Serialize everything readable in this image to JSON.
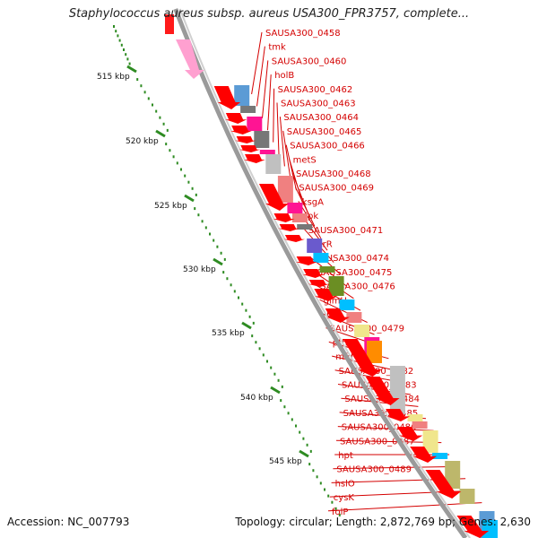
{
  "title": "Staphylococcus aureus subsp. aureus USA300_FPR3757, complete...",
  "accession_label": "Accession: NC_007793",
  "summary_label": "Topology: circular; Length: 2,872,769 bp; Genes: 2,630",
  "ruler_labels": [
    "515 kbp",
    "520 kbp",
    "525 kbp",
    "530 kbp",
    "535 kbp",
    "540 kbp",
    "545 kbp"
  ],
  "gene_labels": [
    "SAUSA300_0458",
    "tmk",
    "SAUSA300_0460",
    "holB",
    "SAUSA300_0462",
    "SAUSA300_0463",
    "SAUSA300_0464",
    "SAUSA300_0465",
    "SAUSA300_0466",
    "metS",
    "SAUSA300_0468",
    "SAUSA300_0469",
    "ksgA",
    "ipk",
    "SAUSA300_0471",
    "purR",
    "SAUSA300_0474",
    "SAUSA300_0475",
    "SAUSA300_0476",
    "glmU",
    "prs",
    "SAUSA300_0479",
    "pth",
    "mfd",
    "SAUSA300_0482",
    "SAUSA300_0483",
    "SAUSA300_0484",
    "SAUSA300_0485",
    "SAUSA300_0486",
    "SAUSA300_0487",
    "hpt",
    "SAUSA300_0489",
    "hslO",
    "cysK",
    "folP"
  ],
  "colors": {
    "gene_arrow": "#ff0000",
    "backbone": "#9a9a9a",
    "ruler_ticks": "#2e8b22",
    "label_text": "#d40000",
    "cog_palette": [
      "#5b9bd5",
      "#ff1493",
      "#777777",
      "#c0c0c0",
      "#f08080",
      "#6a5acd",
      "#00bfff",
      "#6b8e23",
      "#ff8c00",
      "#f0e68c",
      "#bdb76b",
      "#ffb6c1"
    ]
  }
}
